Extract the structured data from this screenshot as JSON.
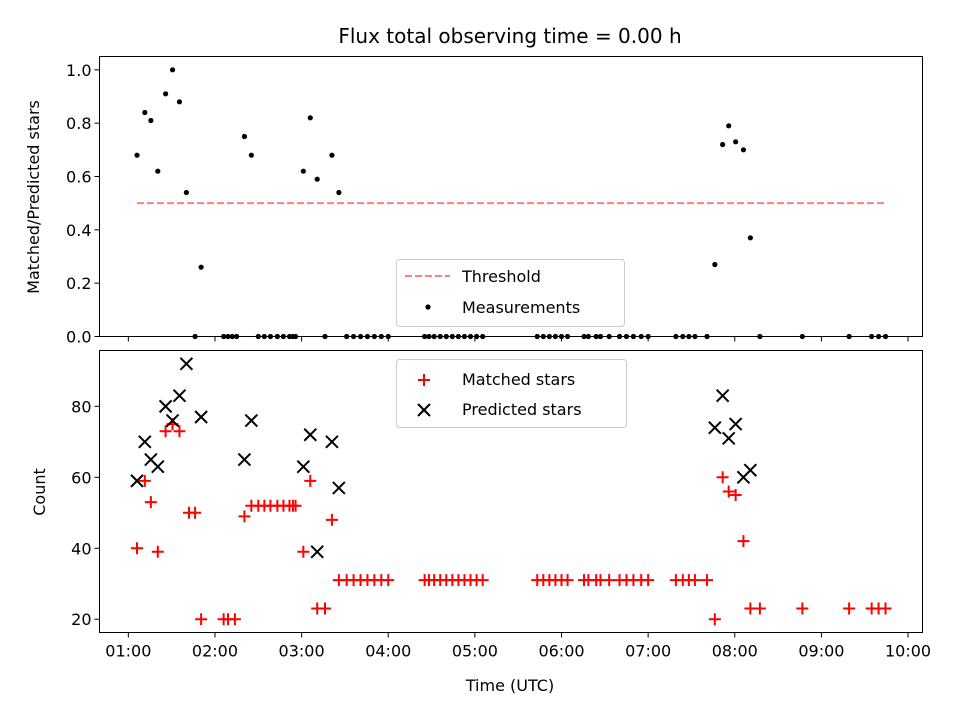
{
  "title": "Flux total observing time = 0.00 h",
  "chart_data": [
    {
      "type": "scatter",
      "ylabel": "Matched/Predicted stars",
      "xlim": [
        0.667,
        10.167
      ],
      "ylim": [
        0,
        1.05
      ],
      "yticks": [
        0.0,
        0.2,
        0.4,
        0.6,
        0.8,
        1.0
      ],
      "ytick_labels": [
        "0.0",
        "0.2",
        "0.4",
        "0.6",
        "0.8",
        "1.0"
      ],
      "xtick_values": [
        1,
        2,
        3,
        4,
        5,
        6,
        7,
        8,
        9,
        10
      ],
      "show_xtick_labels": false,
      "grid": false,
      "legend_position": "lower-center",
      "threshold": {
        "name": "Threshold",
        "y": 0.5,
        "x_range": [
          1.1,
          9.75
        ],
        "color": "#ff8080",
        "style": "dashed"
      },
      "series": [
        {
          "name": "Measurements",
          "marker": "dot",
          "color": "#000000",
          "x": [
            1.1,
            1.19,
            1.26,
            1.34,
            1.43,
            1.51,
            1.59,
            1.67,
            1.84,
            1.77,
            2.1,
            2.15,
            2.2,
            2.25,
            2.5,
            2.57,
            2.64,
            2.72,
            2.79,
            2.86,
            2.9,
            2.93,
            3.27,
            2.34,
            2.42,
            3.02,
            3.1,
            3.18,
            3.35,
            3.43,
            3.52,
            3.6,
            3.68,
            3.76,
            3.84,
            3.92,
            4.0,
            4.42,
            4.47,
            4.53,
            4.6,
            4.67,
            4.74,
            4.81,
            4.88,
            4.95,
            5.02,
            5.09,
            5.72,
            5.79,
            5.86,
            5.93,
            6.0,
            6.07,
            6.26,
            6.31,
            6.4,
            6.45,
            6.55,
            6.67,
            6.75,
            6.83,
            6.92,
            7.0,
            7.32,
            7.4,
            7.47,
            7.54,
            7.68,
            7.77,
            7.86,
            7.93,
            8.01,
            8.1,
            8.18,
            8.29,
            8.78,
            9.32,
            9.58,
            9.66,
            9.74
          ],
          "y": [
            0.68,
            0.84,
            0.81,
            0.62,
            0.91,
            1.0,
            0.88,
            0.54,
            0.26,
            0,
            0,
            0,
            0,
            0,
            0,
            0,
            0,
            0,
            0,
            0,
            0,
            0,
            0,
            0.75,
            0.68,
            0.62,
            0.82,
            0.59,
            0.68,
            0.54,
            0,
            0,
            0,
            0,
            0,
            0,
            0,
            0,
            0,
            0,
            0,
            0,
            0,
            0,
            0,
            0,
            0,
            0,
            0,
            0,
            0,
            0,
            0,
            0,
            0,
            0,
            0,
            0,
            0,
            0,
            0,
            0,
            0,
            0,
            0,
            0,
            0,
            0,
            0,
            0.27,
            0.72,
            0.79,
            0.73,
            0.7,
            0.37,
            0,
            0,
            0,
            0,
            0,
            0
          ]
        }
      ]
    },
    {
      "type": "scatter",
      "xlabel": "Time (UTC)",
      "ylabel": "Count",
      "xlim": [
        0.667,
        10.167
      ],
      "ylim": [
        16.25,
        95.75
      ],
      "yticks": [
        20,
        40,
        60,
        80
      ],
      "ytick_labels": [
        "20",
        "40",
        "60",
        "80"
      ],
      "xtick_values": [
        1,
        2,
        3,
        4,
        5,
        6,
        7,
        8,
        9,
        10
      ],
      "xtick_labels": [
        "01:00",
        "02:00",
        "03:00",
        "04:00",
        "05:00",
        "06:00",
        "07:00",
        "08:00",
        "09:00",
        "10:00"
      ],
      "grid": false,
      "legend_position": "upper-center",
      "series": [
        {
          "name": "Matched stars",
          "marker": "plus",
          "color": "#ff0000",
          "x": [
            1.1,
            1.19,
            1.26,
            1.34,
            1.43,
            1.51,
            1.59,
            1.7,
            1.77,
            1.84,
            2.1,
            2.15,
            2.23,
            2.34,
            2.42,
            2.5,
            2.57,
            2.64,
            2.72,
            2.79,
            2.86,
            2.9,
            2.93,
            3.02,
            3.1,
            3.18,
            3.27,
            3.35,
            3.43,
            3.52,
            3.6,
            3.68,
            3.76,
            3.84,
            3.92,
            4.0,
            4.42,
            4.47,
            4.53,
            4.6,
            4.67,
            4.74,
            4.81,
            4.88,
            4.95,
            5.02,
            5.09,
            5.72,
            5.79,
            5.86,
            5.93,
            6.0,
            6.07,
            6.26,
            6.31,
            6.4,
            6.45,
            6.55,
            6.67,
            6.75,
            6.83,
            6.92,
            7.0,
            7.32,
            7.4,
            7.47,
            7.54,
            7.68,
            7.77,
            7.86,
            7.93,
            8.01,
            8.1,
            8.18,
            8.29,
            8.78,
            9.32,
            9.58,
            9.66,
            9.74
          ],
          "y": [
            40,
            59,
            53,
            39,
            73,
            75,
            73,
            50,
            50,
            20,
            20,
            20,
            20,
            49,
            52,
            52,
            52,
            52,
            52,
            52,
            52,
            52,
            52,
            39,
            59,
            23,
            23,
            48,
            31,
            31,
            31,
            31,
            31,
            31,
            31,
            31,
            31,
            31,
            31,
            31,
            31,
            31,
            31,
            31,
            31,
            31,
            31,
            31,
            31,
            31,
            31,
            31,
            31,
            31,
            31,
            31,
            31,
            31,
            31,
            31,
            31,
            31,
            31,
            31,
            31,
            31,
            31,
            31,
            20,
            60,
            56,
            55,
            42,
            23,
            23,
            23,
            23,
            23,
            23,
            23
          ]
        },
        {
          "name": "Predicted stars",
          "marker": "x",
          "color": "#000000",
          "x": [
            1.1,
            1.19,
            1.26,
            1.34,
            1.43,
            1.51,
            1.59,
            1.67,
            1.84,
            2.34,
            2.42,
            3.02,
            3.1,
            3.18,
            3.35,
            3.43,
            7.77,
            7.86,
            7.93,
            8.01,
            8.1,
            8.18
          ],
          "y": [
            59,
            70,
            65,
            63,
            80,
            76,
            83,
            92,
            77,
            65,
            76,
            63,
            72,
            39,
            70,
            57,
            74,
            83,
            71,
            75,
            60,
            62
          ]
        }
      ]
    }
  ]
}
